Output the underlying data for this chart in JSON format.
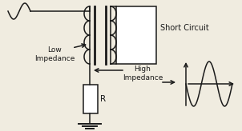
{
  "bg_color": "#f0ece0",
  "line_color": "#1a1a1a",
  "short_circuit_label": "Short Circuit",
  "low_imp_label": "Low\nImpedance",
  "high_imp_label": "High\nImpedance",
  "resistor_label": "R"
}
